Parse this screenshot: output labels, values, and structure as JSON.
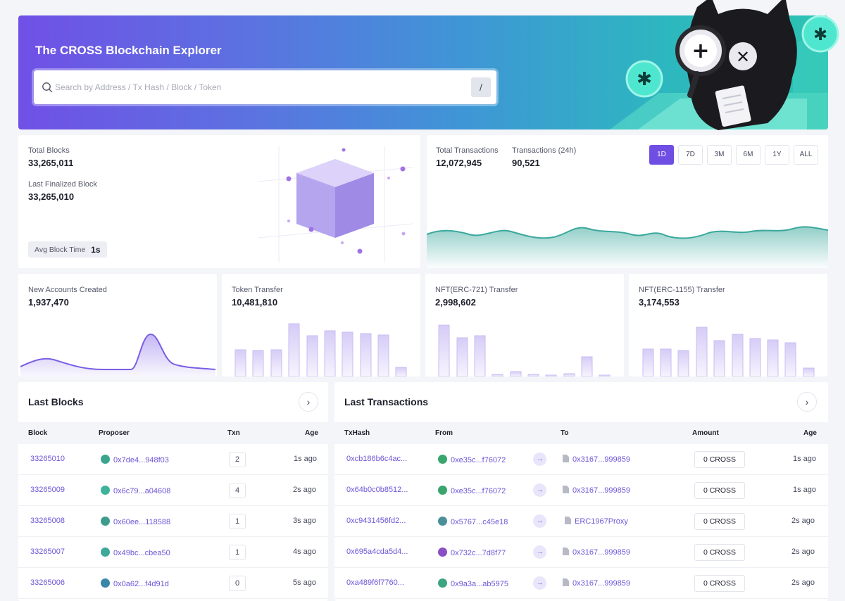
{
  "header": {
    "title": "The CROSS Blockchain Explorer",
    "search_placeholder": "Search by Address / Tx Hash / Block / Token",
    "search_shortcut": "/"
  },
  "blocks_stats": {
    "total_blocks_label": "Total Blocks",
    "total_blocks_value": "33,265,011",
    "last_finalized_label": "Last Finalized Block",
    "last_finalized_value": "33,265,010",
    "avg_block_time_label": "Avg Block Time",
    "avg_block_time_value": "1s"
  },
  "tx_stats": {
    "total_label": "Total Transactions",
    "total_value": "12,072,945",
    "day_label": "Transactions (24h)",
    "day_value": "90,521",
    "ranges": [
      "1D",
      "7D",
      "3M",
      "6M",
      "1Y",
      "ALL"
    ],
    "active_range": "1D"
  },
  "mini_stats": [
    {
      "label": "New Accounts Created",
      "value": "1,937,470"
    },
    {
      "label": "Token Transfer",
      "value": "10,481,810"
    },
    {
      "label": "NFT(ERC-721) Transfer",
      "value": "2,998,602"
    },
    {
      "label": "NFT(ERC-1155) Transfer",
      "value": "3,174,553"
    }
  ],
  "last_blocks": {
    "title": "Last Blocks",
    "columns": [
      "Block",
      "Proposer",
      "Txn",
      "Age"
    ],
    "rows": [
      {
        "block": "33265010",
        "proposer": "0x7de4...948f03",
        "txn": "2",
        "age": "1s ago",
        "color": "#3aa58c"
      },
      {
        "block": "33265009",
        "proposer": "0x6c79...a04608",
        "txn": "4",
        "age": "2s ago",
        "color": "#3fb29b"
      },
      {
        "block": "33265008",
        "proposer": "0x60ee...118588",
        "txn": "1",
        "age": "3s ago",
        "color": "#3d9c8e"
      },
      {
        "block": "33265007",
        "proposer": "0x49bc...cbea50",
        "txn": "1",
        "age": "4s ago",
        "color": "#40a89a"
      },
      {
        "block": "33265006",
        "proposer": "0x0a62...f4d91d",
        "txn": "0",
        "age": "5s ago",
        "color": "#3b86a8"
      }
    ]
  },
  "last_transactions": {
    "title": "Last Transactions",
    "columns": [
      "TxHash",
      "From",
      "To",
      "Amount",
      "Age"
    ],
    "rows": [
      {
        "hash": "0xcb186b6c4ac...",
        "from": "0xe35c...f76072",
        "to": "0x3167...999859",
        "amount": "0 CROSS",
        "age": "1s ago",
        "color": "#3aa56f"
      },
      {
        "hash": "0x64b0c0b8512...",
        "from": "0xe35c...f76072",
        "to": "0x3167...999859",
        "amount": "0 CROSS",
        "age": "1s ago",
        "color": "#3aa56f"
      },
      {
        "hash": "0xc9431456fd2...",
        "from": "0x5767...c45e18",
        "to": "ERC1967Proxy",
        "amount": "0 CROSS",
        "age": "2s ago",
        "color": "#4a8f9a"
      },
      {
        "hash": "0x695a4cda5d4...",
        "from": "0x732c...7d8f77",
        "to": "0x3167...999859",
        "amount": "0 CROSS",
        "age": "2s ago",
        "color": "#8a4fc4"
      },
      {
        "hash": "0xa489f6f7760...",
        "from": "0x9a3a...ab5975",
        "to": "0x3167...999859",
        "amount": "0 CROSS",
        "age": "2s ago",
        "color": "#3ca580"
      }
    ]
  },
  "colors": {
    "accent": "#6e4ee3",
    "link": "#6f56d8",
    "teal": "#3aa89c"
  }
}
